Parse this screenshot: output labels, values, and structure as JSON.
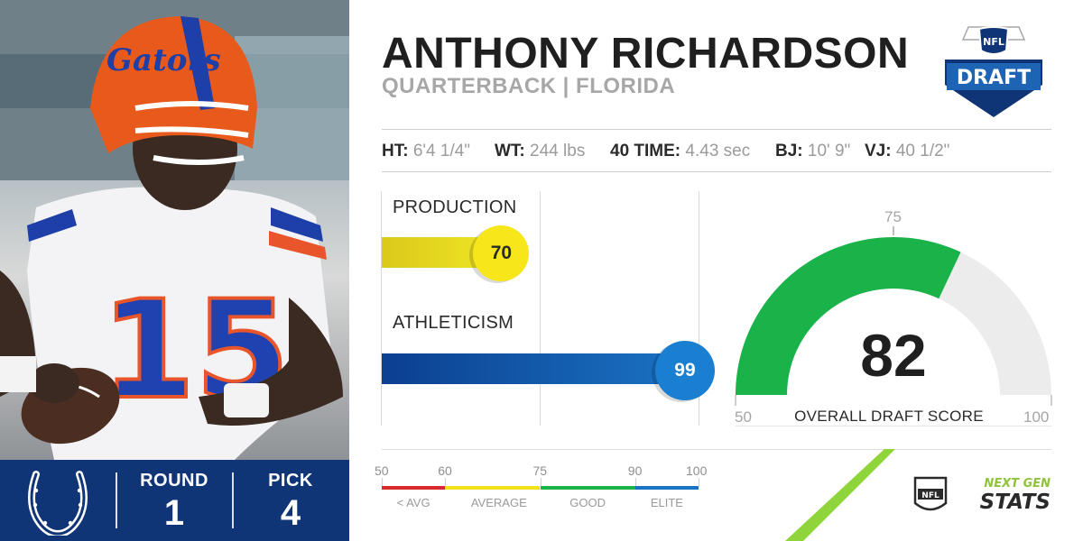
{
  "player": {
    "name": "ANTHONY RICHARDSON",
    "subtitle": "QUARTERBACK | FLORIDA"
  },
  "measurements": [
    {
      "label": "HT:",
      "value": "6'4 1/4\""
    },
    {
      "label": "WT:",
      "value": "244 lbs"
    },
    {
      "label": "40 TIME:",
      "value": "4.43 sec"
    },
    {
      "label": "BJ:",
      "value": "10' 9\""
    },
    {
      "label": "VJ:",
      "value": "40 1/2\""
    }
  ],
  "draft": {
    "round_label": "ROUND",
    "round": "1",
    "pick_label": "PICK",
    "pick": "4",
    "logo_text": "DRAFT",
    "league_text": "NFL"
  },
  "scores": {
    "production": {
      "label": "PRODUCTION",
      "value": 70,
      "color": "#f2e21a"
    },
    "athleticism": {
      "label": "ATHLETICISM",
      "value": 99,
      "color": "#1a73c4"
    }
  },
  "overall": {
    "value": 82,
    "title": "OVERALL DRAFT SCORE",
    "min": 50,
    "max": 100,
    "marker": 75,
    "color": "#19b34a"
  },
  "scale": {
    "ticks": [
      50,
      60,
      75,
      90,
      100
    ],
    "bands": [
      {
        "label": "< AVG",
        "from": 50,
        "to": 60,
        "color": "#d9282f"
      },
      {
        "label": "AVERAGE",
        "from": 60,
        "to": 75,
        "color": "#f2e21a"
      },
      {
        "label": "GOOD",
        "from": 75,
        "to": 90,
        "color": "#19b34a"
      },
      {
        "label": "ELITE",
        "from": 90,
        "to": 100,
        "color": "#1a73c4"
      }
    ]
  },
  "branding": {
    "next_gen": "NEXT GEN",
    "stats": "STATS",
    "nfl": "NFL"
  },
  "photo": {
    "helmet_text": "Gators",
    "jersey_number": "15"
  }
}
